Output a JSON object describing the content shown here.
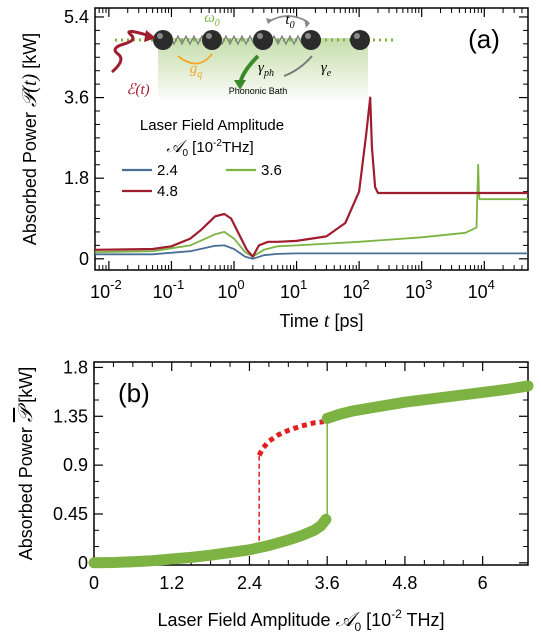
{
  "chart_data": [
    {
      "panel": "(a)",
      "type": "line",
      "xscale": "log",
      "xlim": [
        0.006,
        50000
      ],
      "ylim": [
        -0.25,
        5.6
      ],
      "xlabel_text": "Time ",
      "xlabel_math": "t",
      "xlabel_unit": " [ps]",
      "ylabel_text": "Absorbed Power ",
      "ylabel_math": "𝒫(t)",
      "ylabel_unit": " [kW]",
      "yticks": [
        0,
        1.8,
        3.6,
        5.4
      ],
      "ytick_labels": [
        "0",
        "1.8",
        "3.6",
        "5.4"
      ],
      "xticks": [
        0.01,
        0.1,
        1,
        10,
        100,
        1000,
        10000
      ],
      "xtick_labels": [
        [
          "10",
          "-2"
        ],
        [
          "10",
          "-1"
        ],
        [
          "10",
          "0"
        ],
        [
          "10",
          "1"
        ],
        [
          "10",
          "2"
        ],
        [
          "10",
          "3"
        ],
        [
          "10",
          "4"
        ]
      ],
      "legend_title_1": "Laser Field Amplitude",
      "legend_title_2_math": "𝒜",
      "legend_title_2_sub": "0",
      "legend_title_2_unit": " [10",
      "legend_title_2_exp": "-2",
      "legend_title_2_end": "THz]",
      "series": [
        {
          "name": "2.4",
          "color": "#4a6f96",
          "x": [
            0.006,
            0.05,
            0.2,
            0.5,
            0.7,
            1.0,
            1.5,
            2.0,
            3,
            5,
            10,
            100,
            1000,
            50000
          ],
          "y": [
            0.1,
            0.1,
            0.17,
            0.29,
            0.3,
            0.22,
            0.05,
            0.0,
            0.08,
            0.11,
            0.12,
            0.12,
            0.12,
            0.12
          ]
        },
        {
          "name": "3.6",
          "color": "#7cb342",
          "x": [
            0.006,
            0.05,
            0.2,
            0.5,
            0.7,
            1.0,
            1.5,
            2.0,
            3,
            5,
            10,
            100,
            1000,
            5000,
            7500,
            8000,
            8200,
            8400,
            50000
          ],
          "y": [
            0.15,
            0.17,
            0.3,
            0.55,
            0.6,
            0.45,
            0.15,
            0.05,
            0.2,
            0.28,
            0.3,
            0.38,
            0.48,
            0.58,
            0.7,
            2.1,
            1.5,
            1.33,
            1.33
          ]
        },
        {
          "name": "4.8",
          "color": "#a01d30",
          "x": [
            0.006,
            0.05,
            0.1,
            0.2,
            0.3,
            0.5,
            0.7,
            0.9,
            1.2,
            1.6,
            2.0,
            2.5,
            3.5,
            5,
            10,
            30,
            60,
            100,
            130,
            150,
            160,
            180,
            200,
            50000
          ],
          "y": [
            0.2,
            0.22,
            0.28,
            0.45,
            0.65,
            0.95,
            1.0,
            0.9,
            0.55,
            0.2,
            0.05,
            0.3,
            0.38,
            0.38,
            0.4,
            0.5,
            0.8,
            1.5,
            2.8,
            3.6,
            2.5,
            1.6,
            1.47,
            1.47
          ]
        }
      ],
      "inset_labels": {
        "omega": "ω",
        "omega_sub": "0",
        "t": "t",
        "t_sub": "0",
        "g": "g",
        "g_sub": "q",
        "gph": "γ",
        "gph_sub": "ph",
        "ge": "γ",
        "ge_sub": "e",
        "field": "ℰ(t)",
        "bath": "Phononic Bath"
      },
      "colors": {
        "blue": "#4a6f96",
        "green": "#7cb342",
        "red": "#a01d30"
      }
    },
    {
      "panel": "(b)",
      "type": "scatter",
      "xlim": [
        0,
        6.7
      ],
      "ylim": [
        -0.02,
        1.85
      ],
      "xlabel_text": "Laser Field Amplitude ",
      "xlabel_math": "𝒜",
      "xlabel_sub": "0",
      "xlabel_unit": " [10",
      "xlabel_exp": "-2",
      "xlabel_end": " THz]",
      "ylabel_text": "Absorbed Power ",
      "ylabel_math": "𝒫",
      "ylabel_unit": " [kW]",
      "xticks": [
        0,
        1.2,
        2.4,
        3.6,
        4.8,
        6
      ],
      "xtick_labels": [
        "0",
        "1.2",
        "2.4",
        "3.6",
        "4.8",
        "6"
      ],
      "yticks": [
        0,
        0.45,
        0.9,
        1.35,
        1.8
      ],
      "ytick_labels": [
        "0",
        "0.45",
        "0.9",
        "1.35",
        "1.8"
      ],
      "lower_branch": {
        "x": [
          0,
          0.3,
          0.6,
          0.9,
          1.2,
          1.5,
          1.8,
          2.1,
          2.4,
          2.7,
          3.0,
          3.2,
          3.4,
          3.5,
          3.58
        ],
        "y": [
          0.0,
          0.003,
          0.01,
          0.02,
          0.035,
          0.05,
          0.07,
          0.095,
          0.12,
          0.16,
          0.21,
          0.25,
          0.3,
          0.34,
          0.4
        ]
      },
      "upper_branch_unstable": {
        "x": [
          2.55,
          2.6,
          2.7,
          2.85,
          3.0,
          3.2,
          3.4,
          3.55
        ],
        "y": [
          0.99,
          1.05,
          1.12,
          1.18,
          1.22,
          1.26,
          1.29,
          1.3
        ]
      },
      "upper_branch": {
        "x": [
          3.6,
          3.8,
          4.0,
          4.4,
          4.8,
          5.2,
          5.6,
          6.0,
          6.4,
          6.7
        ],
        "y": [
          1.33,
          1.37,
          1.4,
          1.44,
          1.48,
          1.51,
          1.54,
          1.57,
          1.6,
          1.63
        ]
      },
      "jump_down": {
        "x": 2.55,
        "y_from": 0.13,
        "y_to": 0.99
      },
      "jump_up": {
        "x": 3.6,
        "y_from": 0.4,
        "y_to": 1.33
      },
      "colors": {
        "green": "#7cb342",
        "red": "#e02020"
      }
    }
  ]
}
